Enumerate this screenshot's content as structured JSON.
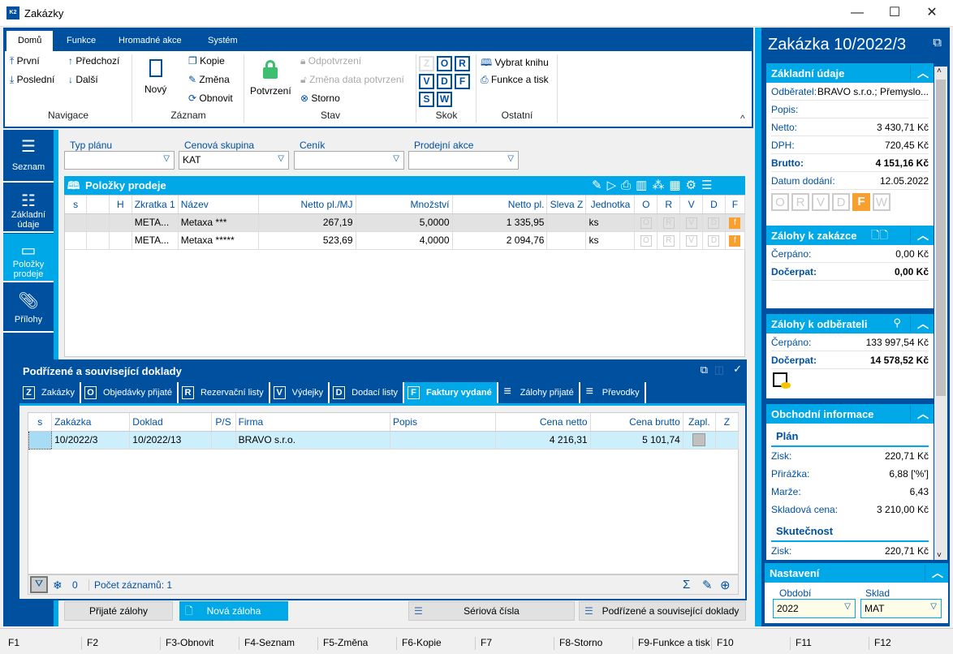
{
  "window": {
    "title": "Zakázky",
    "app_icon": "k2-logo"
  },
  "ribbon": {
    "tabs": [
      "Domů",
      "Funkce",
      "Hromadné akce",
      "Systém"
    ],
    "navigace": {
      "label": "Navigace",
      "first": "První",
      "prev": "Předchozí",
      "last": "Poslední",
      "next": "Další"
    },
    "zaznam": {
      "label": "Záznam",
      "new": "Nový",
      "copy": "Kopie",
      "change": "Změna",
      "refresh": "Obnovit"
    },
    "stav": {
      "label": "Stav",
      "confirm": "Potvrzení",
      "unconfirm": "Odpotvrzení",
      "change_date": "Změna data potvrzení",
      "storno": "Storno"
    },
    "skok": {
      "label": "Skok",
      "keys": [
        "Z",
        "O",
        "R",
        "V",
        "D",
        "F",
        "S",
        "W"
      ]
    },
    "ostatni": {
      "label": "Ostatní",
      "book": "Vybrat knihu",
      "print": "Funkce a tisk"
    }
  },
  "leftnav": [
    {
      "label": "Seznam"
    },
    {
      "label": "Základní údaje"
    },
    {
      "label": "Položky prodeje"
    },
    {
      "label": "Přílohy"
    }
  ],
  "filters": [
    {
      "label": "Typ plánu",
      "value": ""
    },
    {
      "label": "Cenová skupina",
      "value": "KAT"
    },
    {
      "label": "Ceník",
      "value": ""
    },
    {
      "label": "Prodejní akce",
      "value": ""
    }
  ],
  "items": {
    "title": "Položky prodeje",
    "columns": [
      "s",
      "",
      "H",
      "Zkratka 1",
      "Název",
      "Netto pl./MJ",
      "Množství",
      "Netto pl.",
      "Sleva Z",
      "Jednotka",
      "O",
      "R",
      "V",
      "D",
      "F"
    ],
    "rows": [
      {
        "zkratka": "META...",
        "nazev": "Metaxa ***",
        "netto_mj": "267,19",
        "mnozstvi": "5,0000",
        "netto": "1 335,95",
        "sleva": "",
        "jednotka": "ks"
      },
      {
        "zkratka": "META...",
        "nazev": "Metaxa *****",
        "netto_mj": "523,69",
        "mnozstvi": "4,0000",
        "netto": "2 094,76",
        "sleva": "",
        "jednotka": "ks"
      }
    ]
  },
  "sub": {
    "title": "Podřízené a související doklady",
    "tabs": [
      {
        "k": "Z",
        "label": "Zakázky"
      },
      {
        "k": "O",
        "label": "Objedávky přijaté"
      },
      {
        "k": "R",
        "label": "Rezervační listy"
      },
      {
        "k": "V",
        "label": "Výdejky"
      },
      {
        "k": "D",
        "label": "Dodací listy"
      },
      {
        "k": "F",
        "label": "Faktury vydané"
      },
      {
        "k": "≡",
        "label": "Zálohy přijaté"
      },
      {
        "k": "≡",
        "label": "Převodky"
      }
    ],
    "active_tab": "Faktury vydané",
    "columns": [
      "s",
      "Zakázka",
      "Doklad",
      "P/S",
      "Firma",
      "Popis",
      "Cena netto",
      "Cena brutto",
      "Zapl.",
      "Z"
    ],
    "rows": [
      {
        "zakazka": "10/2022/3",
        "doklad": "10/2022/13",
        "ps": "",
        "firma": "BRAVO s.r.o.",
        "popis": "",
        "netto": "4 216,31",
        "brutto": "5 101,74"
      }
    ],
    "status": {
      "count0": "0",
      "records": "Počet záznamů: 1"
    }
  },
  "bottom": {
    "prijate": "Přijaté zálohy",
    "nova": "Nová záloha",
    "seriova": "Sériová čísla",
    "podrizene": "Podřízené a související doklady"
  },
  "fkeys": [
    "F1",
    "F2",
    "F3-Obnovit",
    "F4-Seznam",
    "F5-Změna",
    "F6-Kopie",
    "F7",
    "F8-Storno",
    "F9-Funkce a tisk",
    "F10",
    "F11",
    "F12"
  ],
  "right": {
    "title": "Zakázka 10/2022/3",
    "zakladni": {
      "title": "Základní údaje",
      "odberatel_k": "Odběratel:",
      "odberatel": "BRAVO s.r.o.; Přemyslo...",
      "popis_k": "Popis:",
      "netto_k": "Netto:",
      "netto": "3 430,71 Kč",
      "dph_k": "DPH:",
      "dph": "720,45 Kč",
      "brutto_k": "Brutto:",
      "brutto": "4 151,16 Kč",
      "datum_k": "Datum dodání:",
      "datum": "12.05.2022",
      "flags": [
        "O",
        "R",
        "V",
        "D",
        "F",
        "W"
      ]
    },
    "zal_zak": {
      "title": "Zálohy k zakázce",
      "cerp_k": "Čerpáno:",
      "cerp": "0,00 Kč",
      "doc_k": "Dočerpat:",
      "doc": "0,00 Kč"
    },
    "zal_odb": {
      "title": "Zálohy k odběrateli",
      "cerp_k": "Čerpáno:",
      "cerp": "133 997,54 Kč",
      "doc_k": "Dočerpat:",
      "doc": "14 578,52 Kč"
    },
    "obch": {
      "title": "Obchodní informace",
      "plan": "Plán",
      "zisk_k": "Zisk:",
      "zisk": "220,71 Kč",
      "prir_k": "Přirážka:",
      "prir": "6,88 ['%']",
      "marze_k": "Marže:",
      "marze": "6,43",
      "sklad_k": "Skladová cena:",
      "sklad": "3 210,00 Kč",
      "skut": "Skutečnost",
      "szisk_k": "Zisk:",
      "szisk": "220,71 Kč"
    },
    "nast": {
      "title": "Nastavení",
      "obdobi_k": "Období",
      "obdobi": "2022",
      "sklad_k": "Sklad",
      "sklad": "MAT"
    }
  },
  "colors": {
    "dark_blue": "#0050a0",
    "cyan": "#00a8e8",
    "orange": "#f7a030",
    "confirm_green": "#3cc070"
  }
}
